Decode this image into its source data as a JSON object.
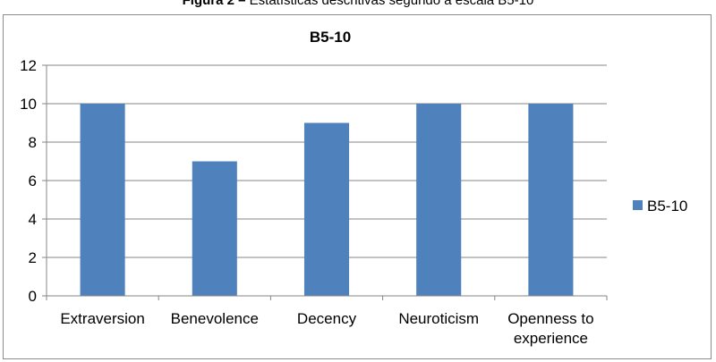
{
  "figure": {
    "caption_bold": "Figura 2 –",
    "caption_text": " Estatísticas descritivas segundo a escala B5-10"
  },
  "chart_data": {
    "type": "bar",
    "title": "B5-10",
    "categories": [
      "Extraversion",
      "Benevolence",
      "Decency",
      "Neuroticism",
      "Openness to experience"
    ],
    "category_lines": [
      [
        "Extraversion"
      ],
      [
        "Benevolence"
      ],
      [
        "Decency"
      ],
      [
        "Neuroticism"
      ],
      [
        "Openness to",
        "experience"
      ]
    ],
    "series": [
      {
        "name": "B5-10",
        "values": [
          10,
          7,
          9,
          10,
          10
        ]
      }
    ],
    "colors": {
      "bar": "#4f81bd",
      "gridline": "#868686"
    },
    "ylim": [
      0,
      12
    ],
    "yticks": [
      0,
      2,
      4,
      6,
      8,
      10,
      12
    ],
    "grid": true,
    "legend": "right"
  }
}
